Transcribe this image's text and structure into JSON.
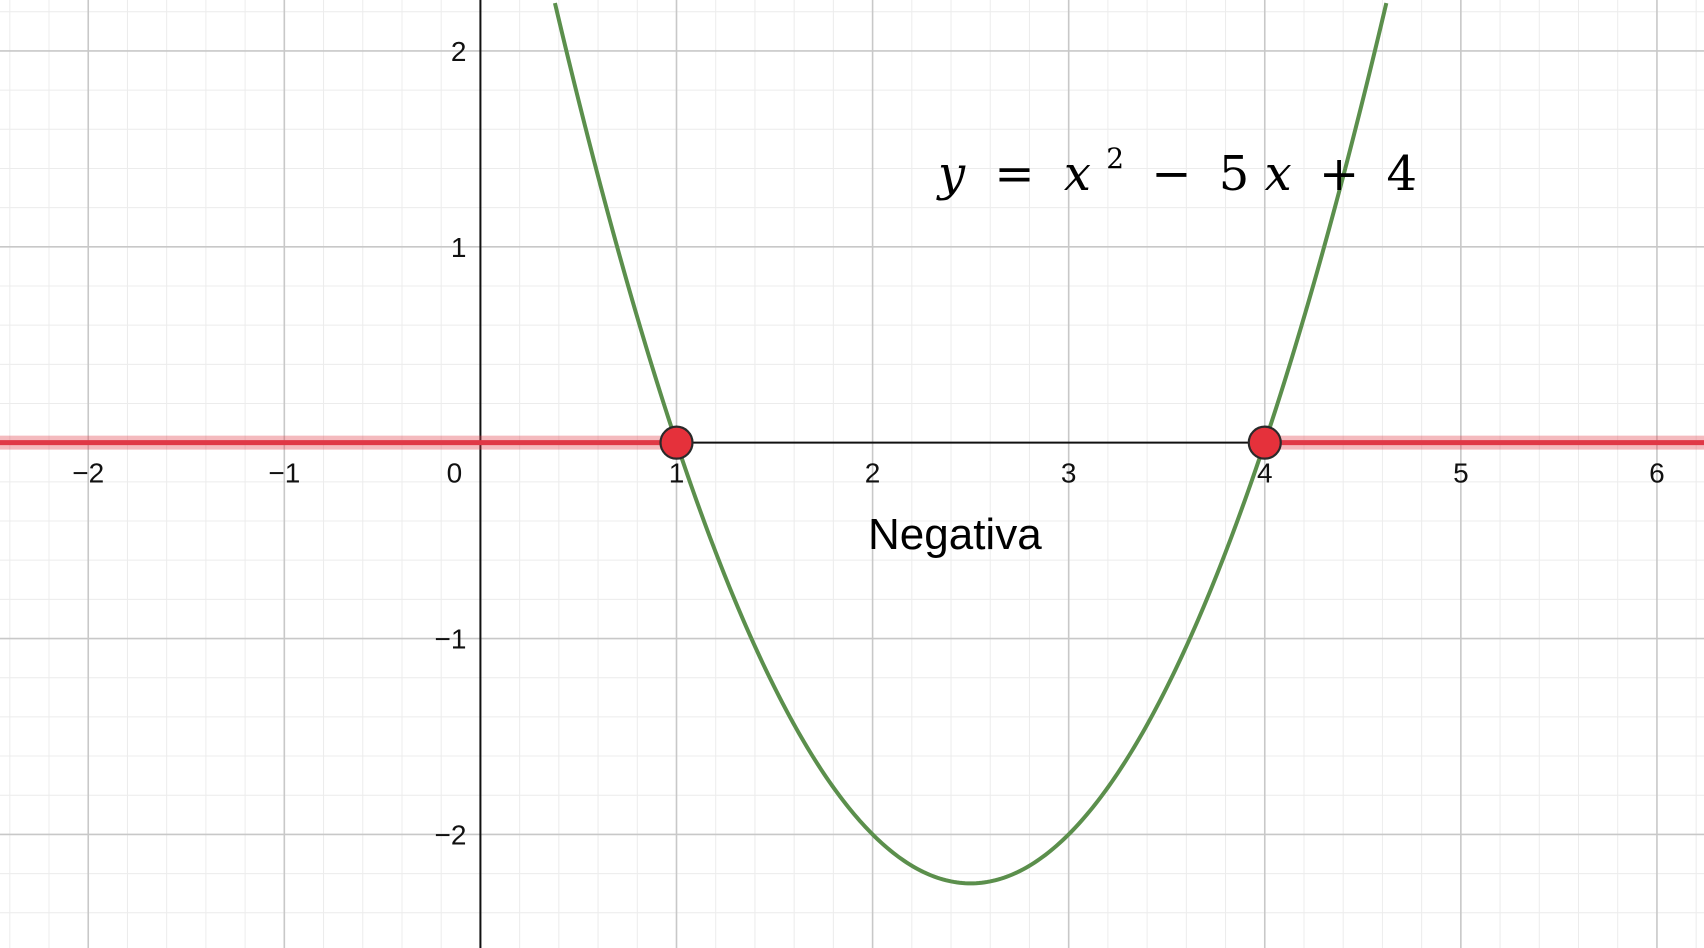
{
  "chart_data": {
    "type": "line",
    "title": "",
    "xlabel": "",
    "ylabel": "",
    "xlim": [
      -2.45,
      6.24
    ],
    "ylim": [
      -2.58,
      2.26
    ],
    "grid": true,
    "x_ticks": [
      -2,
      -1,
      0,
      1,
      2,
      3,
      4,
      5,
      6
    ],
    "x_tick_labels": [
      "−2",
      "−1",
      "0",
      "1",
      "2",
      "3",
      "4",
      "5",
      "6"
    ],
    "y_ticks": [
      -2,
      -1,
      1,
      2
    ],
    "y_tick_labels": [
      "−2",
      "−1",
      "1",
      "2"
    ],
    "series": [
      {
        "function": "x^2 - 5x + 4",
        "coefficients": {
          "a": 1,
          "b": -5,
          "c": 4
        },
        "x_range": [
          0.38,
          4.62
        ],
        "vertex": [
          2.5,
          -2.25
        ],
        "color": "#5b8f4c"
      }
    ],
    "equation": {
      "y": "y",
      "equals": "=",
      "x": "x",
      "exp": "2",
      "minus": "−",
      "five": "5",
      "x2": "x",
      "plus": "+",
      "four": "4"
    },
    "region_label": "Negativa",
    "positive_intervals": [
      [
        -2.45,
        1
      ],
      [
        4,
        6.24
      ]
    ],
    "positive_color": "#e03846",
    "roots": [
      {
        "x": 1,
        "y": 0
      },
      {
        "x": 4,
        "y": 0
      }
    ],
    "root_color": "#e5313b"
  }
}
